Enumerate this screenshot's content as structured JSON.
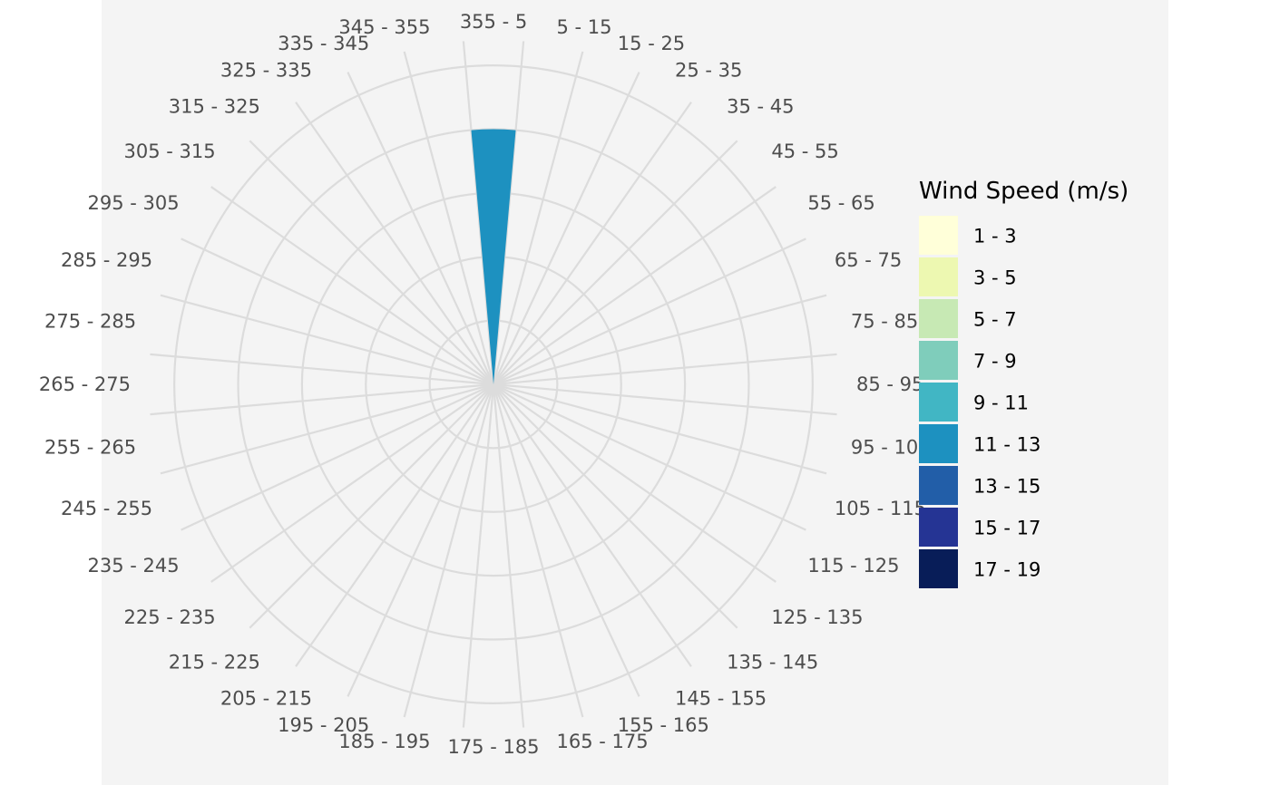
{
  "chart_data": {
    "type": "wind-rose",
    "grid": true,
    "directions": [
      "355 - 5",
      "5 - 15",
      "15 - 25",
      "25 - 35",
      "35 - 45",
      "45 - 55",
      "55 - 65",
      "65 - 75",
      "75 - 85",
      "85 - 95",
      "95 - 105",
      "105 - 115",
      "115 - 125",
      "125 - 135",
      "135 - 145",
      "145 - 155",
      "155 - 165",
      "165 - 175",
      "175 - 185",
      "185 - 195",
      "195 - 205",
      "205 - 215",
      "215 - 225",
      "225 - 235",
      "235 - 245",
      "245 - 255",
      "255 - 265",
      "265 - 275",
      "275 - 285",
      "285 - 295",
      "295 - 305",
      "305 - 315",
      "315 - 325",
      "325 - 335",
      "335 - 345",
      "345 - 355"
    ],
    "bars": [
      {
        "direction": "355 - 5",
        "speed_bin": "11 - 13",
        "value": 1
      }
    ],
    "rings": [
      0.25,
      0.5,
      0.75,
      1.0,
      1.25
    ],
    "r_max": 1.35,
    "legend": {
      "title": "Wind Speed (m/s)",
      "position": "right",
      "items": [
        {
          "label": "1 - 3",
          "color": "#ffffd9"
        },
        {
          "label": "3 - 5",
          "color": "#edf8b1"
        },
        {
          "label": "5 - 7",
          "color": "#c7e9b4"
        },
        {
          "label": "7 - 9",
          "color": "#7fcdbb"
        },
        {
          "label": "9 - 11",
          "color": "#41b6c4"
        },
        {
          "label": "11 - 13",
          "color": "#1d91c0"
        },
        {
          "label": "13 - 15",
          "color": "#225ea8"
        },
        {
          "label": "15 - 17",
          "color": "#253494"
        },
        {
          "label": "17 - 19",
          "color": "#081d58"
        }
      ]
    }
  }
}
